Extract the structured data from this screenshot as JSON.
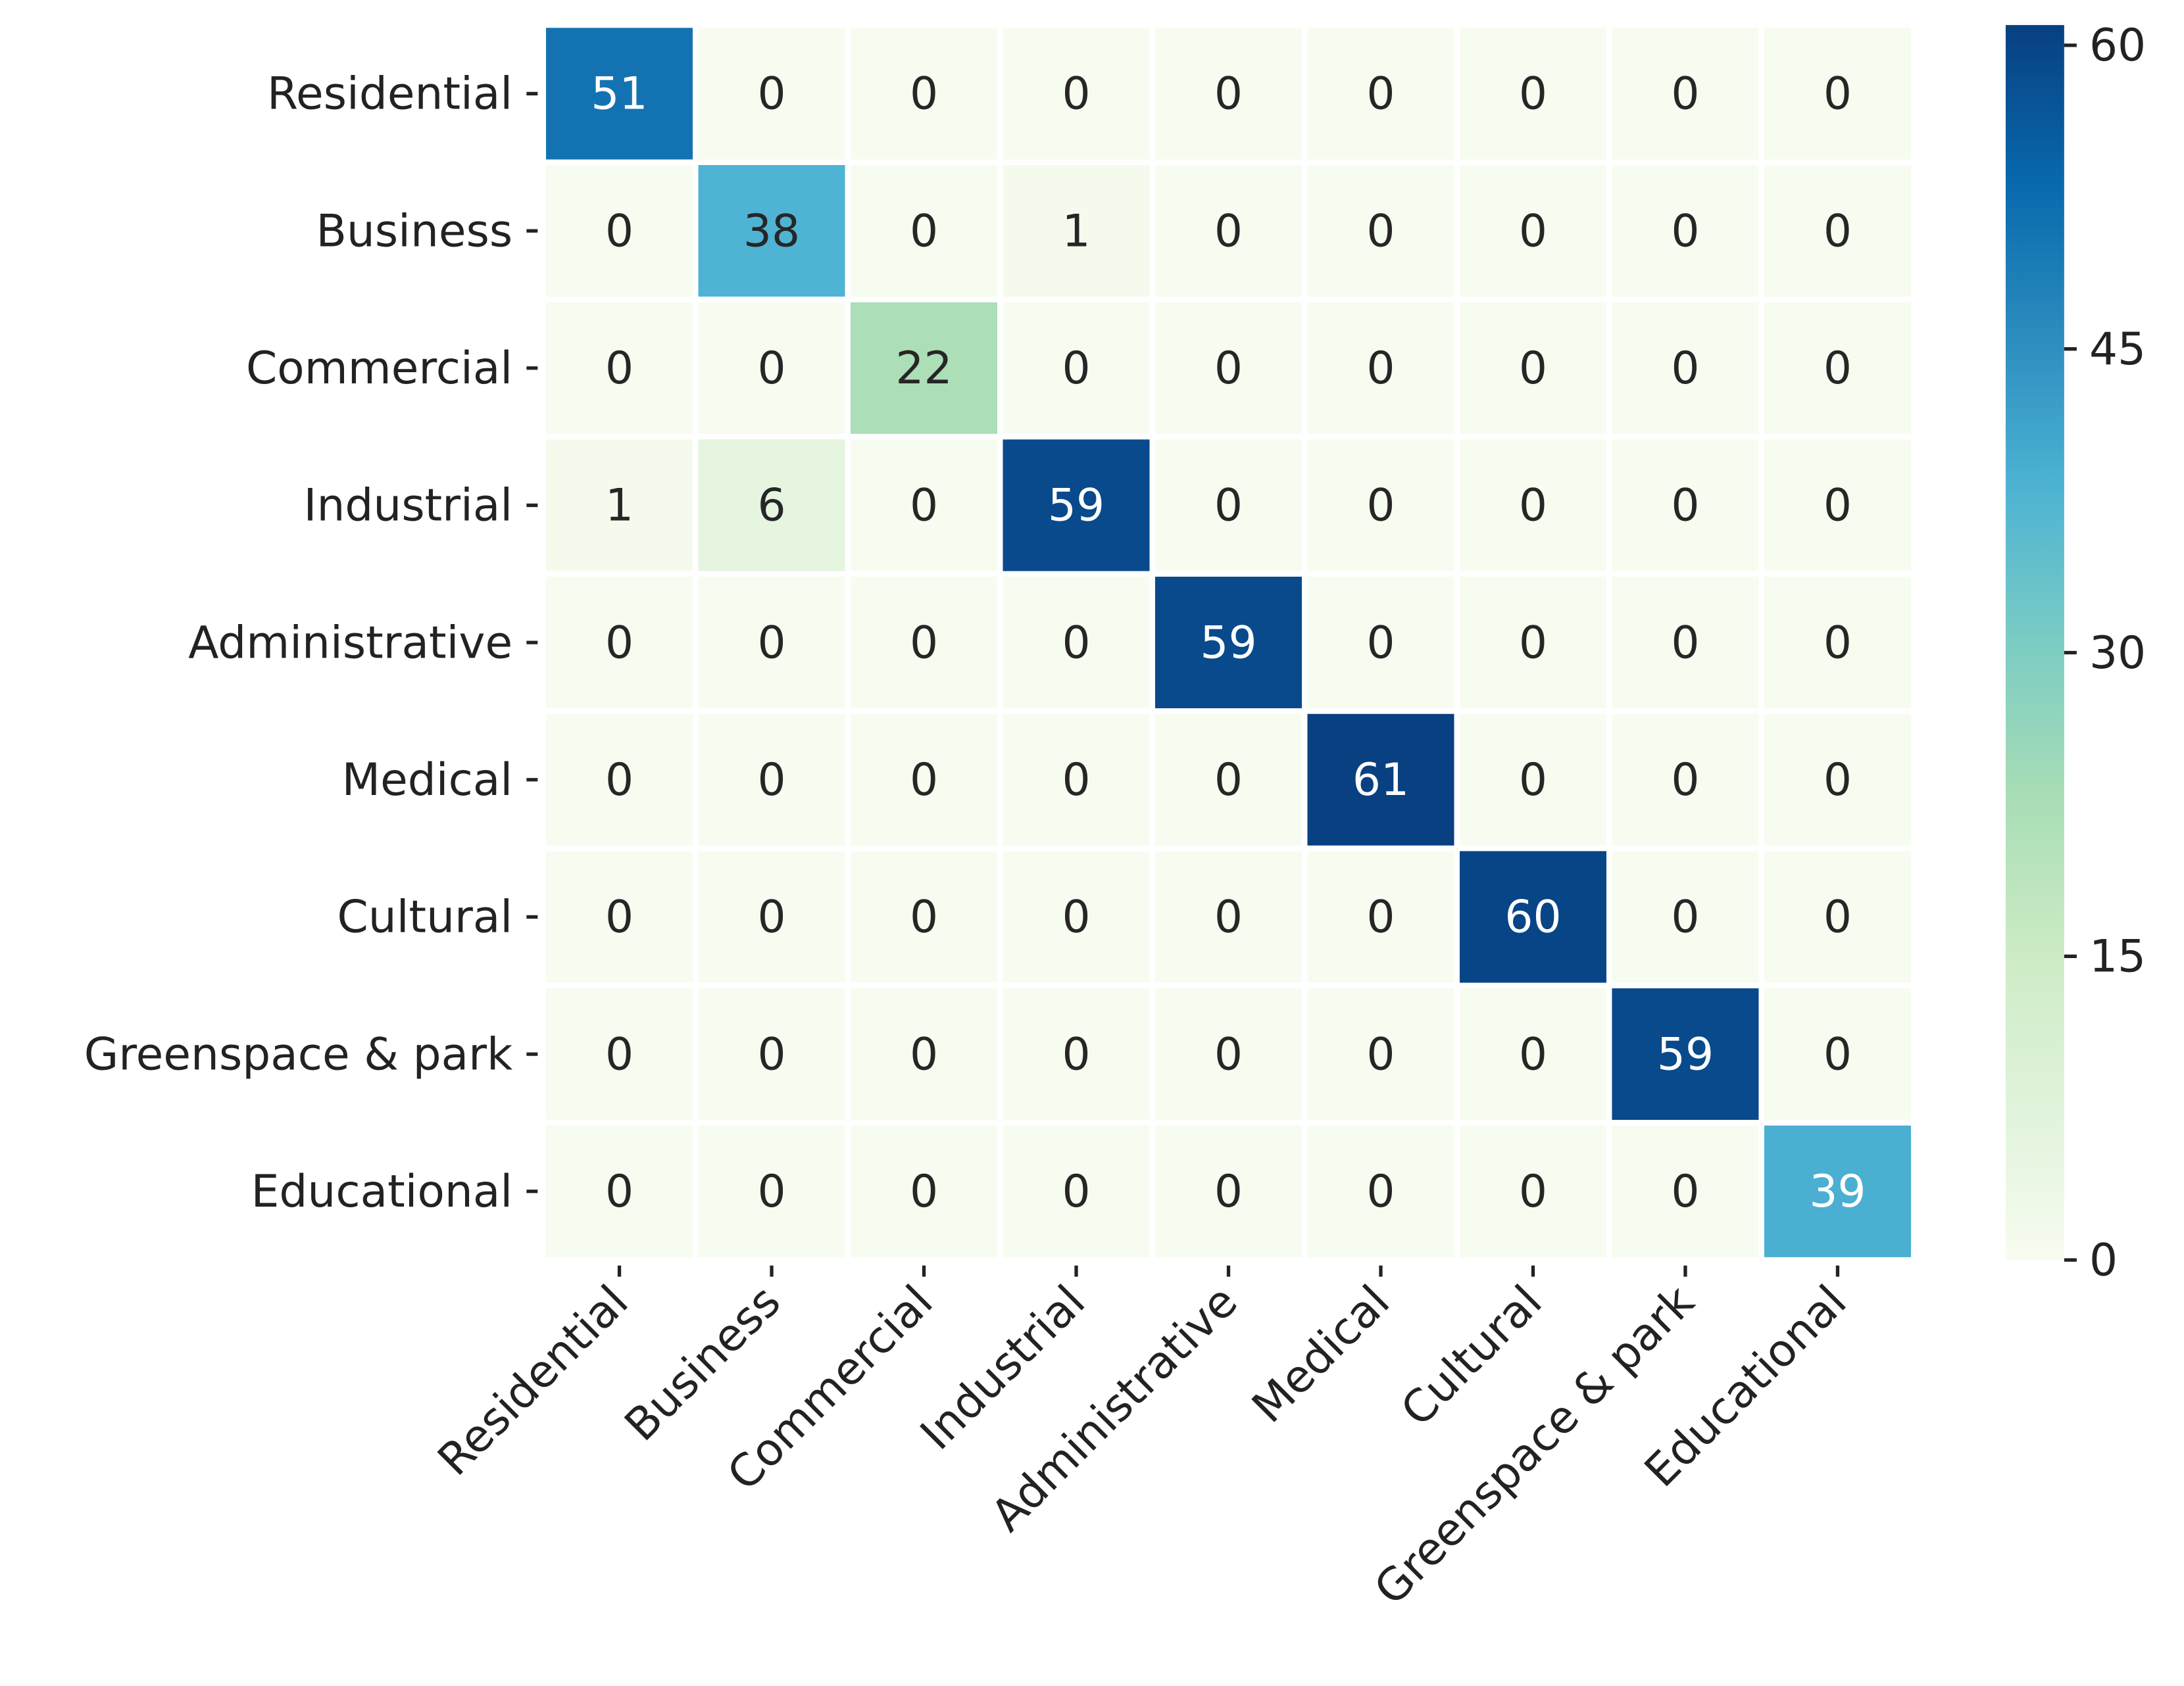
{
  "chart_data": {
    "type": "heatmap",
    "categories": [
      "Residential",
      "Business",
      "Commercial",
      "Industrial",
      "Administrative",
      "Medical",
      "Cultural",
      "Greenspace & park",
      "Educational"
    ],
    "values": [
      [
        51,
        0,
        0,
        0,
        0,
        0,
        0,
        0,
        0
      ],
      [
        0,
        38,
        0,
        1,
        0,
        0,
        0,
        0,
        0
      ],
      [
        0,
        0,
        22,
        0,
        0,
        0,
        0,
        0,
        0
      ],
      [
        1,
        6,
        0,
        59,
        0,
        0,
        0,
        0,
        0
      ],
      [
        0,
        0,
        0,
        0,
        59,
        0,
        0,
        0,
        0
      ],
      [
        0,
        0,
        0,
        0,
        0,
        61,
        0,
        0,
        0
      ],
      [
        0,
        0,
        0,
        0,
        0,
        0,
        60,
        0,
        0
      ],
      [
        0,
        0,
        0,
        0,
        0,
        0,
        0,
        59,
        0
      ],
      [
        0,
        0,
        0,
        0,
        0,
        0,
        0,
        0,
        39
      ]
    ],
    "colormap": "GnBu",
    "clim": [
      0,
      61
    ],
    "cticks": [
      0,
      15,
      30,
      45,
      60
    ]
  }
}
